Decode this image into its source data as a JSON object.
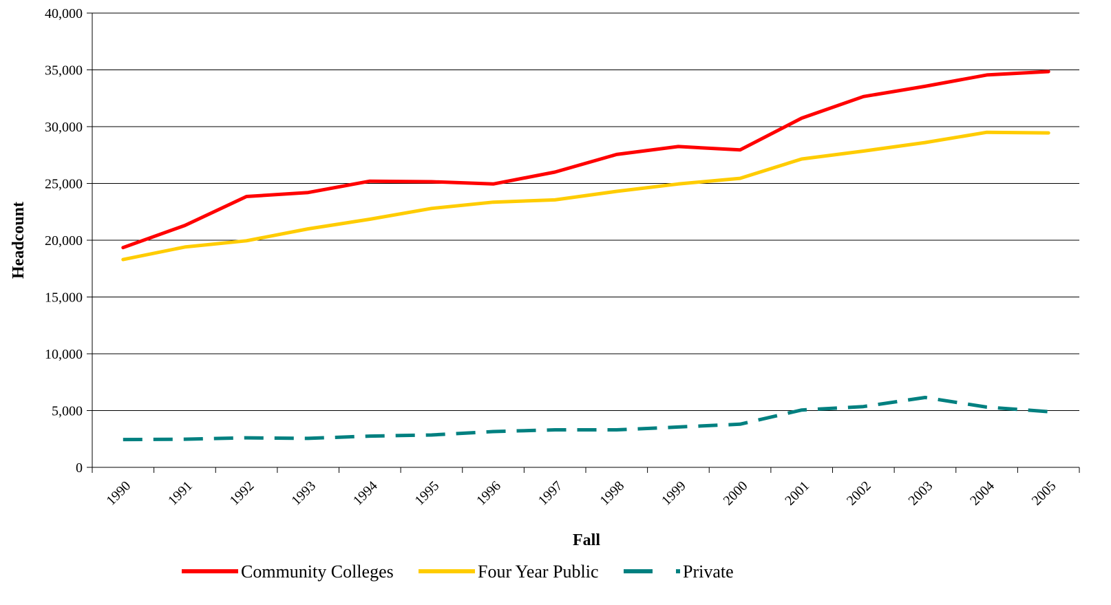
{
  "chart_data": {
    "type": "line",
    "title": "",
    "xlabel": "Fall",
    "ylabel": "Headcount",
    "ylim": [
      0,
      40000
    ],
    "yticks": [
      0,
      5000,
      10000,
      15000,
      20000,
      25000,
      30000,
      35000,
      40000
    ],
    "ytick_labels": [
      "0",
      "5,000",
      "10,000",
      "15,000",
      "20,000",
      "25,000",
      "30,000",
      "35,000",
      "40,000"
    ],
    "categories": [
      "1990",
      "1991",
      "1992",
      "1993",
      "1994",
      "1995",
      "1996",
      "1997",
      "1998",
      "1999",
      "2000",
      "2001",
      "2002",
      "2003",
      "2004",
      "2005"
    ],
    "grid": true,
    "legend_position": "bottom",
    "series": [
      {
        "name": "Community Colleges",
        "color": "#ff0000",
        "style": "solid",
        "values": [
          19350,
          21300,
          23850,
          24200,
          25200,
          25150,
          24950,
          26000,
          27550,
          28250,
          27950,
          30750,
          32650,
          33550,
          34550,
          34850
        ]
      },
      {
        "name": "Four Year Public",
        "color": "#ffcc00",
        "style": "solid",
        "values": [
          18300,
          19400,
          19950,
          21000,
          21850,
          22800,
          23350,
          23550,
          24300,
          24950,
          25450,
          27150,
          27850,
          28600,
          29500,
          29450
        ]
      },
      {
        "name": "Private",
        "color": "#008080",
        "style": "dashed",
        "values": [
          2450,
          2480,
          2600,
          2550,
          2750,
          2850,
          3150,
          3300,
          3300,
          3550,
          3800,
          5050,
          5350,
          6150,
          5300,
          4900
        ]
      }
    ]
  }
}
